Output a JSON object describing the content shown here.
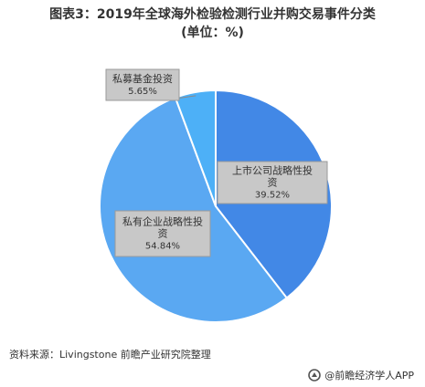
{
  "title": {
    "line1": "图表3：2019年全球海外检验检测行业并购交易事件分类",
    "line2": "(单位：%)"
  },
  "source": "资料来源：Livingstone 前瞻产业研究院整理",
  "brand": "@前瞻经济学人APP",
  "colors": {
    "slice_listed": "#4288e6",
    "slice_private": "#5aa8f2",
    "slice_pe": "#4db0f7",
    "label_box": "#c8c8c8",
    "label_border": "#9a9a9a"
  },
  "chart_data": {
    "type": "pie",
    "title": "图表3：2019年全球海外检验检测行业并购交易事件分类 (单位：%)",
    "slices": [
      {
        "label": "上市公司战略性投资",
        "label_lines": [
          "上市公司战略性投",
          "资"
        ],
        "value": 39.52,
        "value_text": "39.52%"
      },
      {
        "label": "私有企业战略性投资",
        "label_lines": [
          "私有企业战略性投",
          "资"
        ],
        "value": 54.84,
        "value_text": "54.84%"
      },
      {
        "label": "私募基金投资",
        "label_lines": [
          "私募基金投资"
        ],
        "value": 5.65,
        "value_text": "5.65%"
      }
    ],
    "start": "top",
    "direction": "clockwise"
  }
}
